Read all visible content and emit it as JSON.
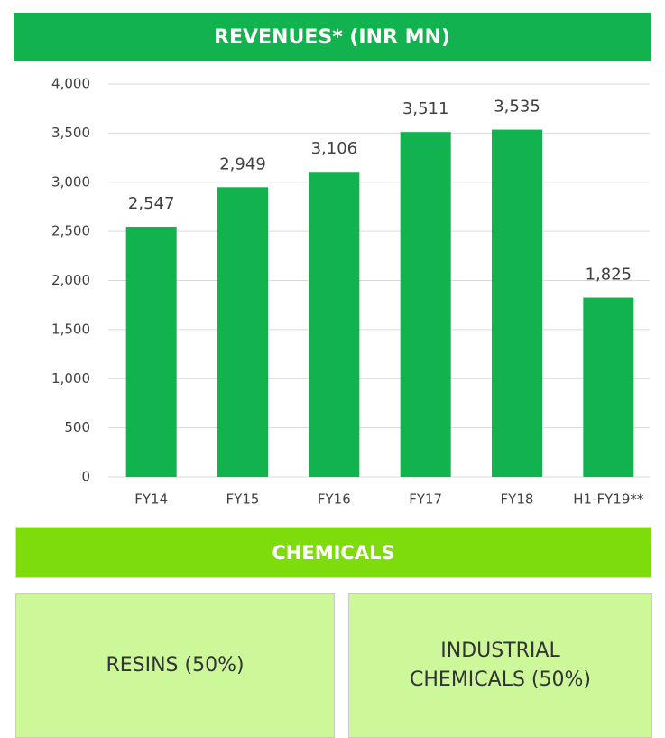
{
  "chart_data": {
    "type": "bar",
    "title": "REVENUES* (INR MN)",
    "categories": [
      "FY14",
      "FY15",
      "FY16",
      "FY17",
      "FY18",
      "H1-FY19**"
    ],
    "values": [
      2547,
      2949,
      3106,
      3511,
      3535,
      1825
    ],
    "value_labels": [
      "2,547",
      "2,949",
      "3,106",
      "3,511",
      "3,535",
      "1,825"
    ],
    "color": "#12b24f",
    "ylim": [
      0,
      4000
    ],
    "yticks": [
      0,
      500,
      {
        "value": 1000,
        "label": "1,000"
      },
      {
        "value": 1500,
        "label": "1,500"
      },
      {
        "value": 2000,
        "label": "2,000"
      },
      {
        "value": 2500,
        "label": "2,500"
      },
      {
        "value": 3000,
        "label": "3,000"
      },
      {
        "value": 3500,
        "label": "3,500"
      },
      {
        "value": 4000,
        "label": "4,000"
      }
    ],
    "grid": true
  },
  "chemicals": {
    "title": "CHEMICALS",
    "boxes": [
      "RESINS (50%)",
      "INDUSTRIAL CHEMICALS (50%)"
    ]
  }
}
